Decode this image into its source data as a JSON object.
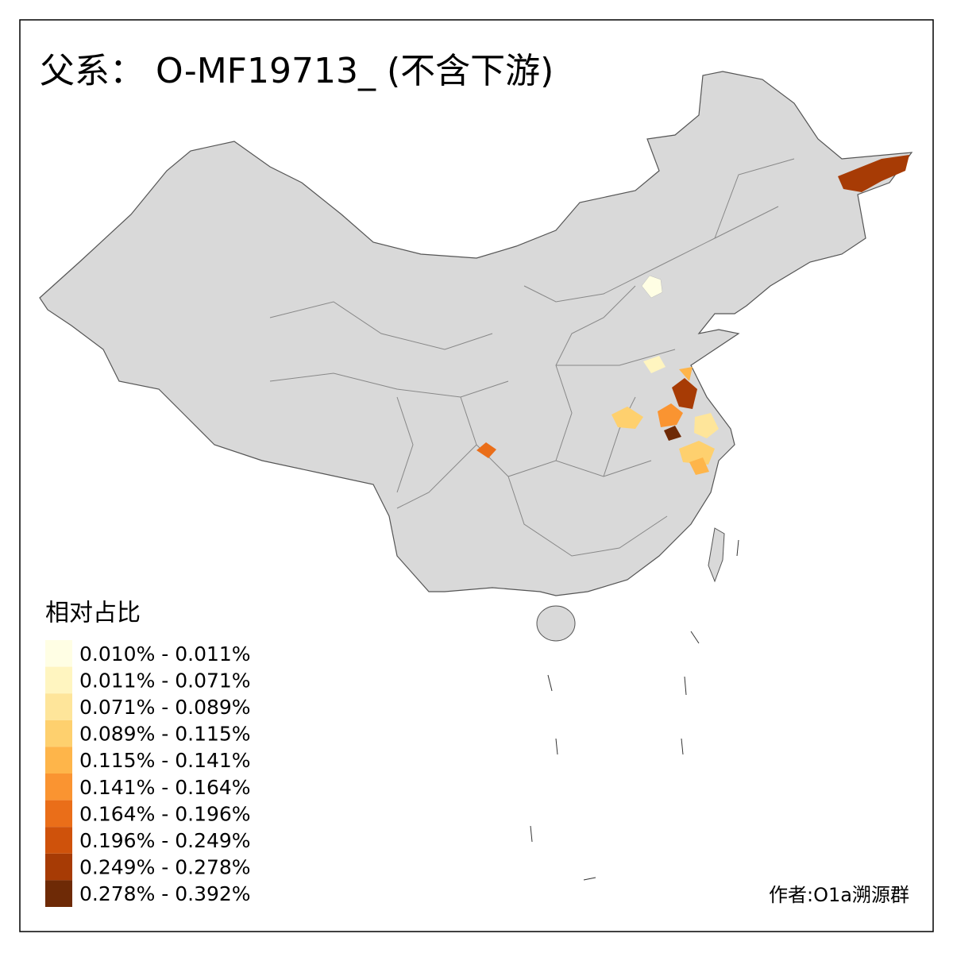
{
  "title": "父系： O-MF19713_ (不含下游)",
  "legend": {
    "title": "相对占比",
    "items": [
      {
        "label": "0.010% - 0.011%",
        "color": "#fffee4"
      },
      {
        "label": "0.011% - 0.071%",
        "color": "#fff5c0"
      },
      {
        "label": "0.071% - 0.089%",
        "color": "#fee59a"
      },
      {
        "label": "0.089% - 0.115%",
        "color": "#fed06e"
      },
      {
        "label": "0.115% - 0.141%",
        "color": "#feb54a"
      },
      {
        "label": "0.141% - 0.164%",
        "color": "#fa9431"
      },
      {
        "label": "0.164% - 0.196%",
        "color": "#ea6e19"
      },
      {
        "label": "0.196% - 0.249%",
        "color": "#cf520b"
      },
      {
        "label": "0.249% - 0.278%",
        "color": "#a73b05"
      },
      {
        "label": "0.278% - 0.392%",
        "color": "#6e2a06"
      }
    ]
  },
  "credit": "作者:O1a溯源群"
}
